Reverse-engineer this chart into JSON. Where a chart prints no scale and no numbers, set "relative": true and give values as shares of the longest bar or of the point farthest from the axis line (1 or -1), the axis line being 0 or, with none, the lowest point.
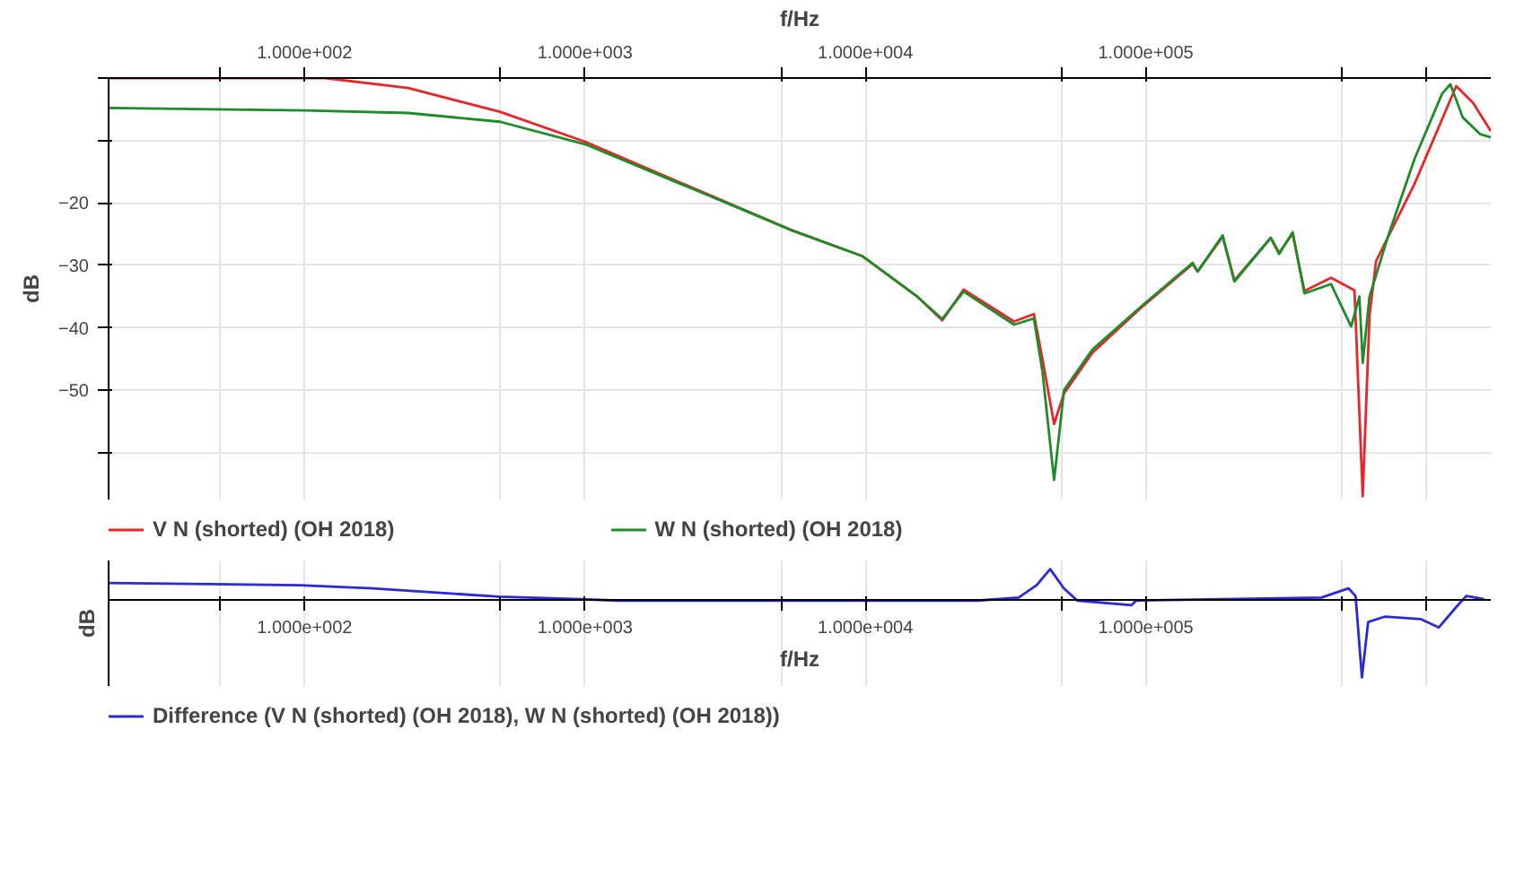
{
  "chart_data": [
    {
      "type": "line",
      "xlabel": "f/Hz",
      "ylabel": "dB",
      "xlim": [
        20,
        1700000
      ],
      "ylim": [
        -67.5,
        0
      ],
      "log": "x",
      "grid": true,
      "legend": "bottom",
      "xticks": [
        {
          "value": 50,
          "label": null
        },
        {
          "value": 100,
          "label": "1.000e+002"
        },
        {
          "value": 500,
          "label": null
        },
        {
          "value": 1000,
          "label": "1.000e+003"
        },
        {
          "value": 5000,
          "label": null
        },
        {
          "value": 10000,
          "label": "1.000e+004"
        },
        {
          "value": 50000,
          "label": null
        },
        {
          "value": 100000,
          "label": "1.000e+005"
        },
        {
          "value": 500000,
          "label": null
        },
        {
          "value": 1000000,
          "label": null
        }
      ],
      "yticks": [
        {
          "value": -60,
          "label": null
        },
        -50,
        -40,
        -30,
        -20,
        {
          "value": -10,
          "label": null
        },
        {
          "value": 0,
          "label": null
        }
      ],
      "series": [
        {
          "name": "V N (shorted) (OH 2018)",
          "color": "#e8262a",
          "x": [
            20,
            118,
            234,
            497,
            1000,
            2100,
            5470,
            9730,
            15300,
            18800,
            22400,
            33900,
            39900,
            42800,
            47100,
            51100,
            64500,
            97300,
            147000,
            153000,
            188000,
            207000,
            279000,
            299000,
            334000,
            368000,
            458000,
            555000,
            594000,
            628000,
            663000,
            908000,
            1280000,
            1470000,
            1700000
          ],
          "values": [
            0,
            0,
            -1.6,
            -5.4,
            -10.2,
            -16.4,
            -24.4,
            -28.5,
            -35,
            -38.8,
            -33.9,
            -39,
            -37.8,
            -45,
            -55.4,
            -50.5,
            -44,
            -36.6,
            -29.8,
            -31,
            -25.4,
            -32.4,
            -25.6,
            -28,
            -24.9,
            -34.1,
            -32,
            -34,
            -67,
            -38,
            -29.3,
            -17,
            -1.3,
            -4,
            -8.5
          ]
        },
        {
          "name": "W N (shorted) (OH 2018)",
          "color": "#1e8c2a",
          "x": [
            20,
            100,
            234,
            497,
            1000,
            2100,
            5470,
            9730,
            15300,
            18800,
            22400,
            33900,
            39900,
            42800,
            47100,
            51100,
            64500,
            97300,
            147000,
            153000,
            188000,
            207000,
            279000,
            299000,
            334000,
            368000,
            458000,
            540000,
            578000,
            594000,
            628000,
            732000,
            908000,
            1140000,
            1220000,
            1350000,
            1560000,
            1700000
          ],
          "values": [
            -4.8,
            -5.2,
            -5.6,
            -7,
            -10.6,
            -16.6,
            -24.4,
            -28.5,
            -35,
            -38.6,
            -34.2,
            -39.5,
            -38.5,
            -47,
            -64.4,
            -50,
            -43.5,
            -36.4,
            -29.6,
            -31,
            -25.2,
            -32.6,
            -25.6,
            -28.2,
            -24.7,
            -34.5,
            -33,
            -39.8,
            -35,
            -45.6,
            -35,
            -25.3,
            -13,
            -2.5,
            -1,
            -6.3,
            -9,
            -9.5
          ]
        }
      ]
    },
    {
      "type": "line",
      "xlabel": "f/Hz",
      "ylabel": "dB",
      "xlim": [
        20,
        1700000
      ],
      "log": "x",
      "grid": "x",
      "legend": "bottom",
      "relative": true,
      "xticks": [
        {
          "value": 50,
          "label": null
        },
        {
          "value": 100,
          "label": "1.000e+002"
        },
        {
          "value": 500,
          "label": null
        },
        {
          "value": 1000,
          "label": "1.000e+003"
        },
        {
          "value": 5000,
          "label": null
        },
        {
          "value": 10000,
          "label": "1.000e+004"
        },
        {
          "value": 50000,
          "label": null
        },
        {
          "value": 100000,
          "label": "1.000e+005"
        },
        {
          "value": 500000,
          "label": null
        },
        {
          "value": 1000000,
          "label": null
        }
      ],
      "series": [
        {
          "name": "Difference (V N (shorted) (OH 2018), W N (shorted) (OH 2018))",
          "color": "#2a2ad8",
          "x": [
            20,
            96,
            175,
            493,
            962,
            1294,
            25200,
            35200,
            40800,
            45600,
            51000,
            57000,
            89000,
            92300,
            423000,
            528000,
            560000,
            590000,
            621000,
            711000,
            955000,
            1110000,
            1290000,
            1390000,
            1610000
          ],
          "values": [
            0.23,
            0.2,
            0.16,
            0.05,
            0.02,
            0,
            0,
            0.04,
            0.2,
            0.41,
            0.16,
            0,
            -0.06,
            0,
            0.04,
            0.16,
            0.06,
            -1,
            -0.28,
            -0.21,
            -0.24,
            -0.35,
            -0.07,
            0.06,
            0.02
          ]
        }
      ]
    }
  ]
}
